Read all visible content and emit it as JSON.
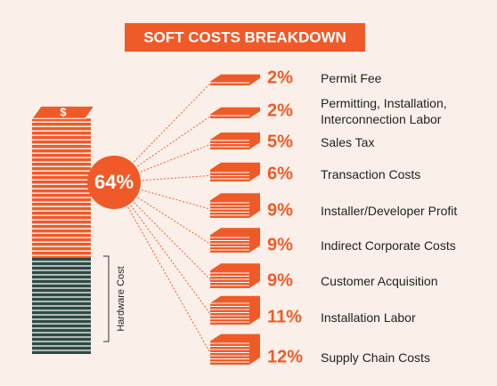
{
  "chart_data": {
    "type": "stack",
    "title": "SOFT COSTS BREAKDOWN",
    "icon": "$",
    "total": 64,
    "total_label": "64%",
    "side_label": "Hardware Cost",
    "categories": [
      "Permit Fee",
      "Permitting, Installation, Interconnection Labor",
      "Sales Tax",
      "Transaction Costs",
      "Installer/Developer Profit",
      "Indirect Corporate Costs",
      "Customer Acquisition",
      "Installation Labor",
      "Supply Chain Costs"
    ],
    "values": [
      2,
      2,
      5,
      6,
      9,
      9,
      9,
      11,
      12
    ],
    "value_labels": [
      "2%",
      "2%",
      "5%",
      "6%",
      "9%",
      "9%",
      "9%",
      "11%",
      "12%"
    ],
    "color": "#f05a28",
    "dark_color": "#2f4a45"
  }
}
